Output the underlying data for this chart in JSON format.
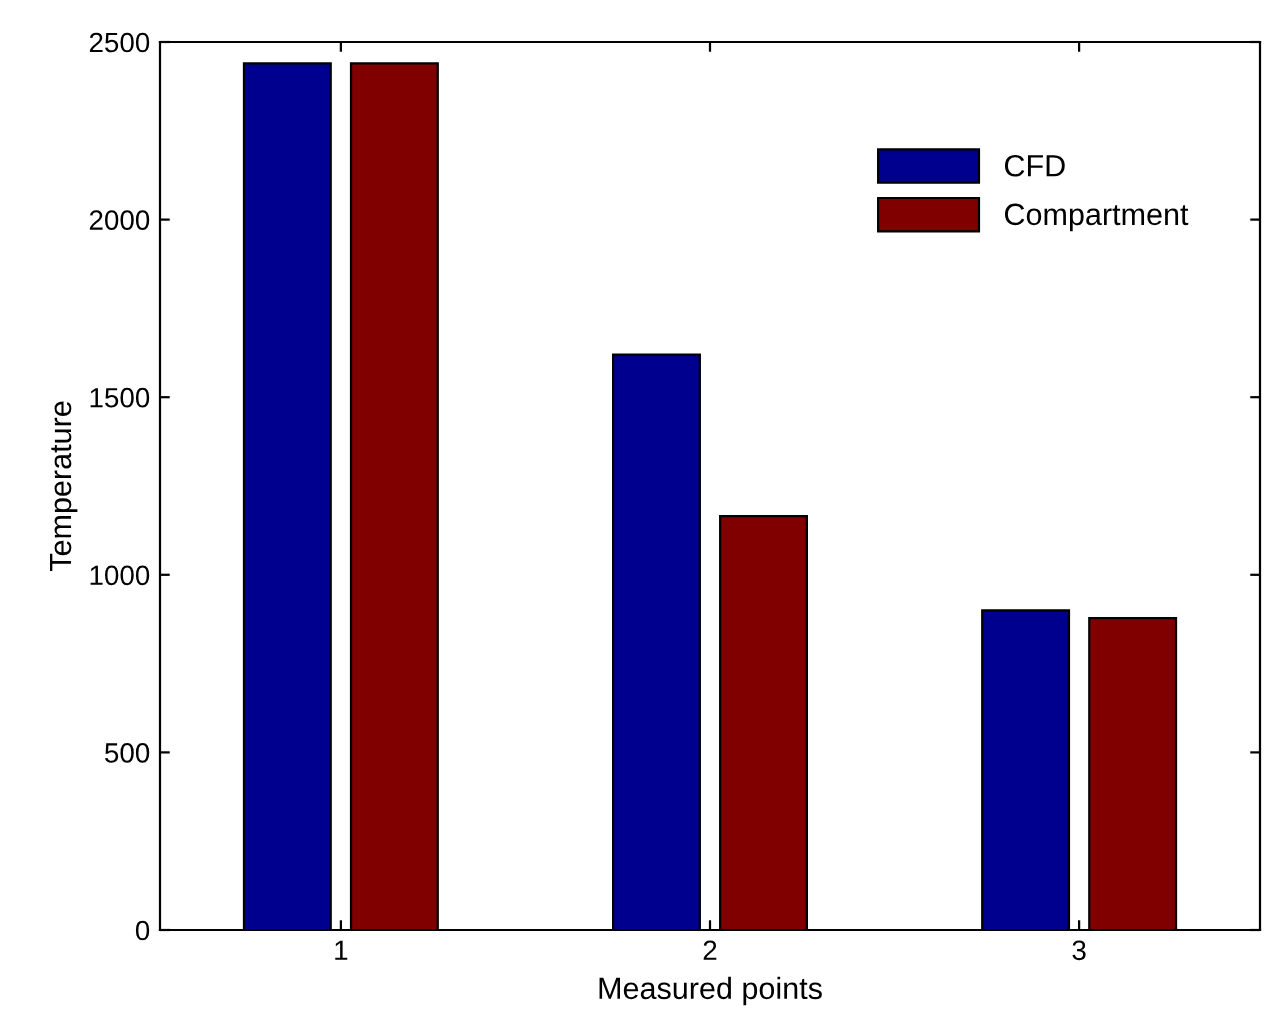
{
  "chart_data": {
    "type": "bar",
    "xlabel": "Measured points",
    "ylabel": "Temperature",
    "categories": [
      "1",
      "2",
      "3"
    ],
    "series": [
      {
        "name": "CFD",
        "color": "#00008f",
        "values": [
          2440,
          1620,
          900
        ]
      },
      {
        "name": "Compartment",
        "color": "#800000",
        "values": [
          2440,
          1165,
          878
        ]
      }
    ],
    "ylim": [
      0,
      2500
    ],
    "yticks": [
      0,
      500,
      1000,
      1500,
      2000,
      2500
    ],
    "legend": "top right",
    "grid": false
  }
}
